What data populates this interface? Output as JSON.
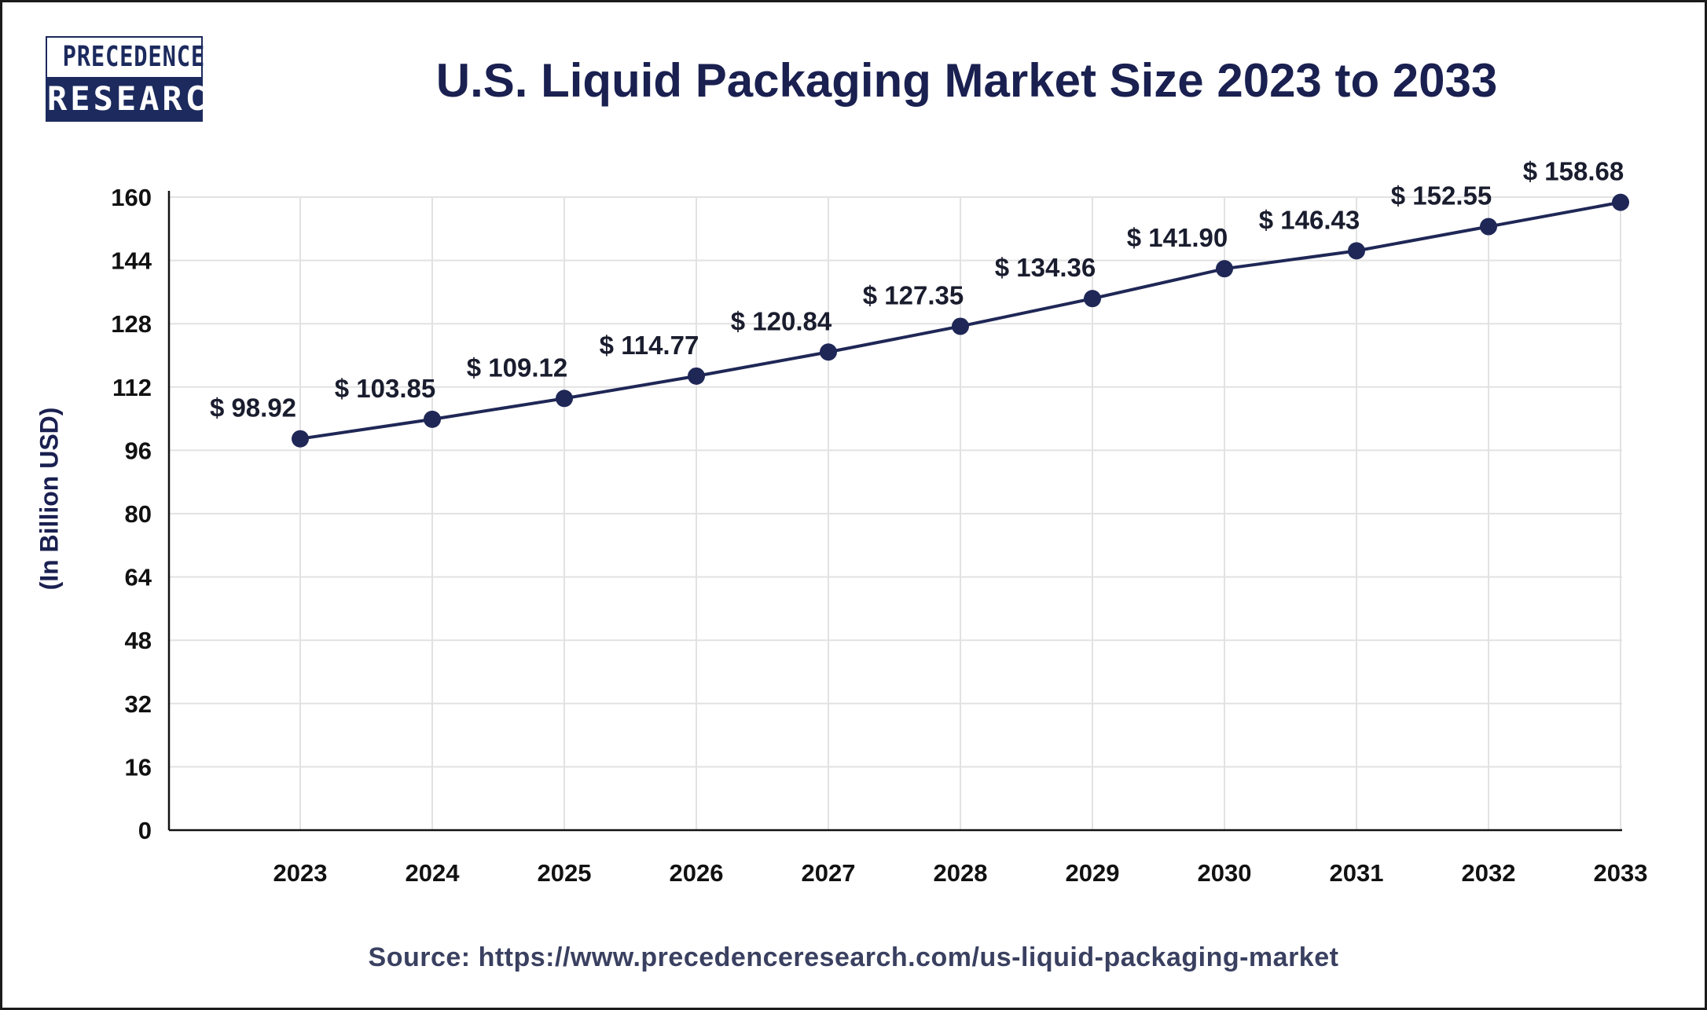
{
  "logo": {
    "line1": "PRECEDENCE",
    "line2": "RESEARCH"
  },
  "source": "Source: https://www.precedenceresearch.com/us-liquid-packaging-market",
  "colors": {
    "line": "#1f2756",
    "marker": "#1f2756",
    "title": "#1a2050",
    "grid": "#e2e2e2"
  },
  "chart_data": {
    "type": "line",
    "title": "U.S. Liquid Packaging Market Size 2023 to 2033",
    "xlabel": "",
    "ylabel": "(In Billion USD)",
    "categories": [
      "2023",
      "2024",
      "2025",
      "2026",
      "2027",
      "2028",
      "2029",
      "2030",
      "2031",
      "2032",
      "2033"
    ],
    "values": [
      98.92,
      103.85,
      109.12,
      114.77,
      120.84,
      127.35,
      134.36,
      141.9,
      146.43,
      152.55,
      158.68
    ],
    "data_labels": [
      "$ 98.92",
      "$ 103.85",
      "$ 109.12",
      "$ 114.77",
      "$ 120.84",
      "$ 127.35",
      "$ 134.36",
      "$ 141.90",
      "$ 146.43",
      "$ 152.55",
      "$ 158.68"
    ],
    "ylim": [
      0,
      160
    ],
    "yticks": [
      0,
      16,
      32,
      48,
      64,
      80,
      96,
      112,
      128,
      144,
      160
    ],
    "grid": true,
    "legend": "none"
  }
}
